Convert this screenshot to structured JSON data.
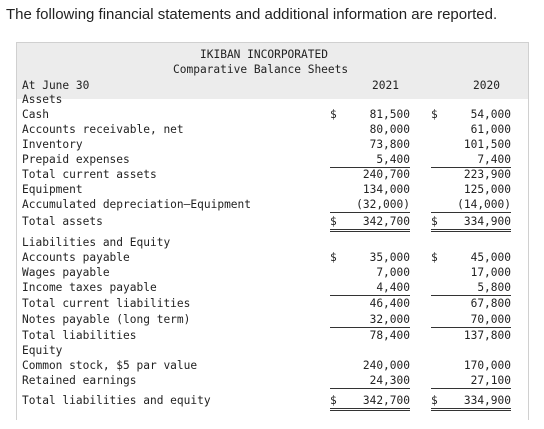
{
  "intro": "The following financial statements and additional information are reported.",
  "header": {
    "company": "IKIBAN INCORPORATED",
    "subtitle": "Comparative Balance Sheets",
    "as_of": "At June 30",
    "col_2021": "2021",
    "col_2020": "2020"
  },
  "rows": [
    {
      "label": "Assets",
      "v2021": "",
      "v2020": ""
    },
    {
      "label": "Cash",
      "sym2021": "$",
      "v2021": "81,500",
      "sym2020": "$",
      "v2020": "54,000"
    },
    {
      "label": "Accounts receivable, net",
      "v2021": "80,000",
      "v2020": "61,000"
    },
    {
      "label": "Inventory",
      "v2021": "73,800",
      "v2020": "101,500"
    },
    {
      "label": "Prepaid expenses",
      "v2021": "5,400",
      "v2020": "7,400"
    },
    {
      "label": "Total current assets",
      "v2021": "240,700",
      "v2020": "223,900"
    },
    {
      "label": "Equipment",
      "v2021": "134,000",
      "v2020": "125,000"
    },
    {
      "label": "Accumulated depreciation—Equipment",
      "v2021": "(32,000)",
      "v2020": "(14,000)"
    },
    {
      "label": "Total assets",
      "sym2021": "$",
      "v2021": "342,700",
      "sym2020": "$",
      "v2020": "334,900"
    },
    {
      "label": "Liabilities and Equity",
      "v2021": "",
      "v2020": ""
    },
    {
      "label": "Accounts payable",
      "sym2021": "$",
      "v2021": "35,000",
      "sym2020": "$",
      "v2020": "45,000"
    },
    {
      "label": "Wages payable",
      "v2021": "7,000",
      "v2020": "17,000"
    },
    {
      "label": "Income taxes payable",
      "v2021": "4,400",
      "v2020": "5,800"
    },
    {
      "label": "Total current liabilities",
      "v2021": "46,400",
      "v2020": "67,800"
    },
    {
      "label": "Notes payable (long term)",
      "v2021": "32,000",
      "v2020": "70,000"
    },
    {
      "label": "Total liabilities",
      "v2021": "78,400",
      "v2020": "137,800"
    },
    {
      "label": "Equity",
      "v2021": "",
      "v2020": ""
    },
    {
      "label": "Common stock, $5 par value",
      "v2021": "240,000",
      "v2020": "170,000"
    },
    {
      "label": "Retained earnings",
      "v2021": "24,300",
      "v2020": "27,100"
    },
    {
      "label": "Total liabilities and equity",
      "sym2021": "$",
      "v2021": "342,700",
      "sym2020": "$",
      "v2020": "334,900"
    }
  ]
}
